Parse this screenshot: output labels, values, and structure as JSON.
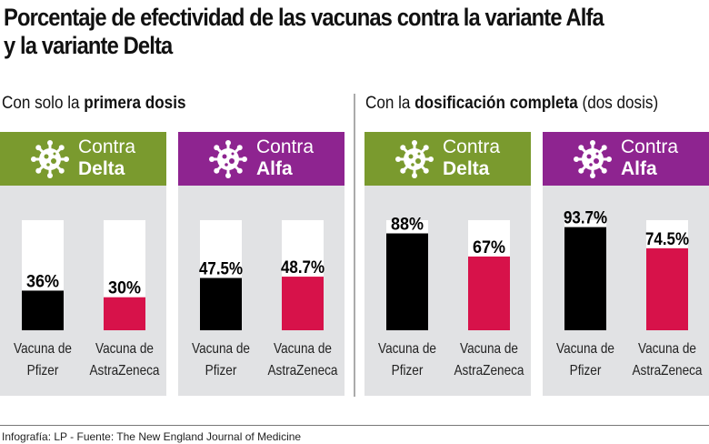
{
  "title": "Porcentaje de efectividad de las vacunas contra la variante Alfa y la variante Delta",
  "sections": [
    {
      "pre": "Con solo la ",
      "bold": "primera dosis",
      "post": ""
    },
    {
      "pre": "Con la ",
      "bold": "dosificación completa",
      "post": " (dos dosis)"
    }
  ],
  "footer": "Infografía: LP - Fuente: The New England Journal of Medicine",
  "colors": {
    "delta": "#7a9a2e",
    "alfa": "#8e2490",
    "pfizer": "#000000",
    "astrazeneca": "#d7124a",
    "panel": "#e1e2e4"
  },
  "chart_data": [
    {
      "type": "bar",
      "section": "primera dosis",
      "header": [
        "Contra",
        "Delta"
      ],
      "color": "#7a9a2e",
      "categories": [
        "Vacuna de Pfizer",
        "Vacuna de AstraZeneca"
      ],
      "values": [
        36,
        30
      ],
      "labels": [
        "36%",
        "30%"
      ],
      "ylim": [
        0,
        100
      ]
    },
    {
      "type": "bar",
      "section": "primera dosis",
      "header": [
        "Contra",
        "Alfa"
      ],
      "color": "#8e2490",
      "categories": [
        "Vacuna de Pfizer",
        "Vacuna de AstraZeneca"
      ],
      "values": [
        47.5,
        48.7
      ],
      "labels": [
        "47.5%",
        "48.7%"
      ],
      "ylim": [
        0,
        100
      ]
    },
    {
      "type": "bar",
      "section": "dosificación completa",
      "header": [
        "Contra",
        "Delta"
      ],
      "color": "#7a9a2e",
      "categories": [
        "Vacuna de Pfizer",
        "Vacuna de AstraZeneca"
      ],
      "values": [
        88,
        67
      ],
      "labels": [
        "88%",
        "67%"
      ],
      "ylim": [
        0,
        100
      ]
    },
    {
      "type": "bar",
      "section": "dosificación completa",
      "header": [
        "Contra",
        "Alfa"
      ],
      "color": "#8e2490",
      "categories": [
        "Vacuna de Pfizer",
        "Vacuna de AstraZeneca"
      ],
      "values": [
        93.7,
        74.5
      ],
      "labels": [
        "93.7%",
        "74.5%"
      ],
      "ylim": [
        0,
        100
      ]
    }
  ]
}
